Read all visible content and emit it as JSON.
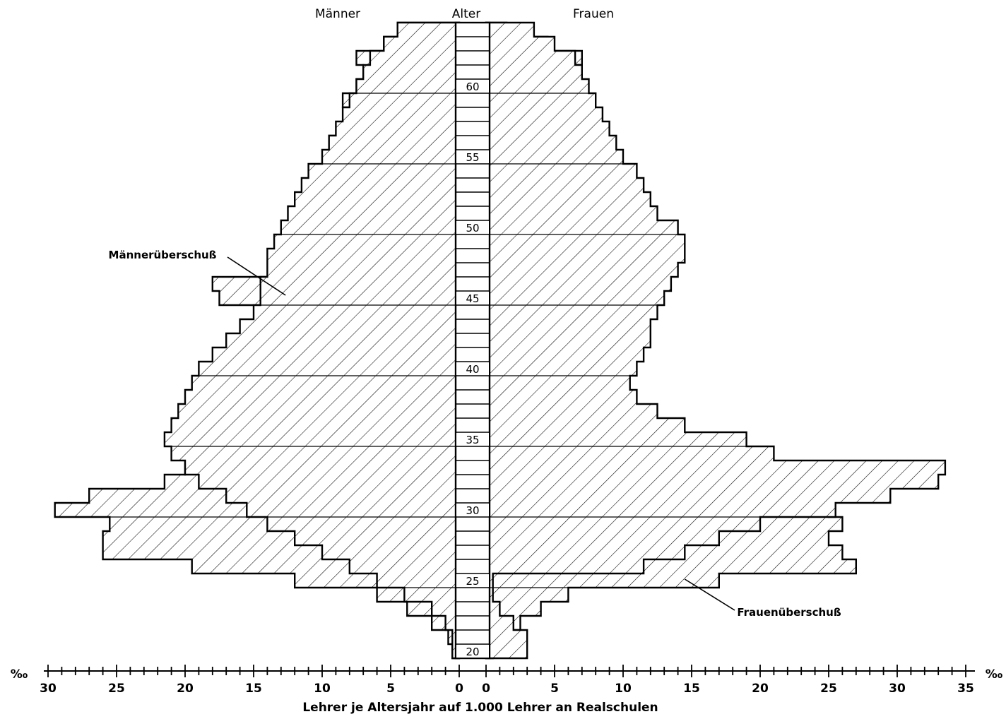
{
  "chart_data": {
    "type": "population-pyramid",
    "title": "",
    "header": {
      "left": "Männer",
      "center": "Alter",
      "right": "Frauen"
    },
    "xlabel": "Lehrer je Altersjahr auf 1.000 Lehrer an Realschulen",
    "unit_left": "‰",
    "unit_right": "‰",
    "male_axis": {
      "range": [
        0,
        30
      ],
      "major_ticks": [
        30,
        25,
        20,
        15,
        10,
        5,
        0
      ],
      "minor_step": 1
    },
    "female_axis": {
      "range": [
        0,
        35
      ],
      "major_ticks": [
        0,
        5,
        10,
        15,
        20,
        25,
        30,
        35
      ],
      "minor_step": 1
    },
    "age_range": [
      20,
      65
    ],
    "age_labels": [
      20,
      25,
      30,
      35,
      40,
      45,
      50,
      55,
      60
    ],
    "ages": [
      20,
      21,
      22,
      23,
      24,
      25,
      26,
      27,
      28,
      29,
      30,
      31,
      32,
      33,
      34,
      35,
      36,
      37,
      38,
      39,
      40,
      41,
      42,
      43,
      44,
      45,
      46,
      47,
      48,
      49,
      50,
      51,
      52,
      53,
      54,
      55,
      56,
      57,
      58,
      59,
      60,
      61,
      62,
      63,
      64
    ],
    "male_series_1": [
      0.5,
      0.8,
      2.0,
      3.8,
      6.0,
      12.0,
      19.5,
      26.0,
      26.0,
      25.5,
      29.5,
      27.0,
      21.5,
      20.0,
      17.5,
      13.0,
      11.5,
      9.0,
      8.0,
      8.0,
      12.0,
      12.0,
      12.0,
      12.0,
      13.5,
      17.5,
      18.0,
      13.0,
      12.5,
      11.5,
      12.0,
      9.5,
      7.5,
      6.5,
      7.5,
      9.5,
      9.5,
      8.5,
      8.0,
      8.5,
      7.5,
      7.0,
      7.5,
      5.5,
      4.5
    ],
    "female_series_1": [
      0.5,
      1.5,
      2.5,
      4.0,
      6.0,
      17.0,
      27.0,
      26.0,
      25.0,
      26.0,
      25.0,
      19.0,
      13.0,
      11.0,
      10.5,
      10.0,
      6.0,
      5.5,
      5.5,
      5.5,
      5.5,
      6.5,
      7.0,
      7.0,
      7.5,
      8.5,
      8.0,
      7.0,
      7.0,
      7.0,
      6.0,
      5.0,
      3.0,
      3.0,
      3.5,
      4.5,
      4.0,
      4.0,
      5.0,
      5.5,
      5.5,
      6.5,
      7.0,
      4.5,
      1.5
    ],
    "male_series_2": [
      0.5,
      0.5,
      1.0,
      2.0,
      4.0,
      6.0,
      8.0,
      10.0,
      12.0,
      14.0,
      15.5,
      17.0,
      19.0,
      20.0,
      21.0,
      21.5,
      21.0,
      20.5,
      20.0,
      19.5,
      19.0,
      18.0,
      17.0,
      16.0,
      15.0,
      14.5,
      14.5,
      14.0,
      14.0,
      13.5,
      13.0,
      12.5,
      12.0,
      11.5,
      11.0,
      10.0,
      9.5,
      9.0,
      8.5,
      8.0,
      7.5,
      7.0,
      6.5,
      5.5,
      4.5
    ],
    "female_series_2": [
      3.0,
      3.0,
      2.0,
      1.0,
      0.5,
      0.5,
      11.5,
      14.5,
      17.0,
      20.0,
      25.5,
      29.5,
      33.0,
      33.5,
      21.0,
      19.0,
      14.5,
      12.5,
      11.0,
      10.5,
      11.0,
      11.5,
      12.0,
      12.0,
      12.5,
      13.0,
      13.5,
      14.0,
      14.5,
      14.5,
      14.0,
      12.5,
      12.0,
      11.5,
      11.0,
      10.0,
      9.5,
      9.0,
      8.5,
      8.0,
      7.5,
      7.0,
      6.5,
      5.0,
      3.5
    ],
    "annotations": [
      {
        "text": "Männerüberschuß",
        "points_to": {
          "side": "male",
          "age": 45.5,
          "value": 12
        }
      },
      {
        "text": "Frauenüberschuß",
        "points_to": {
          "side": "female",
          "age": 25.5,
          "value": 14.5
        }
      }
    ],
    "fill_pattern": "diagonal hatching"
  }
}
